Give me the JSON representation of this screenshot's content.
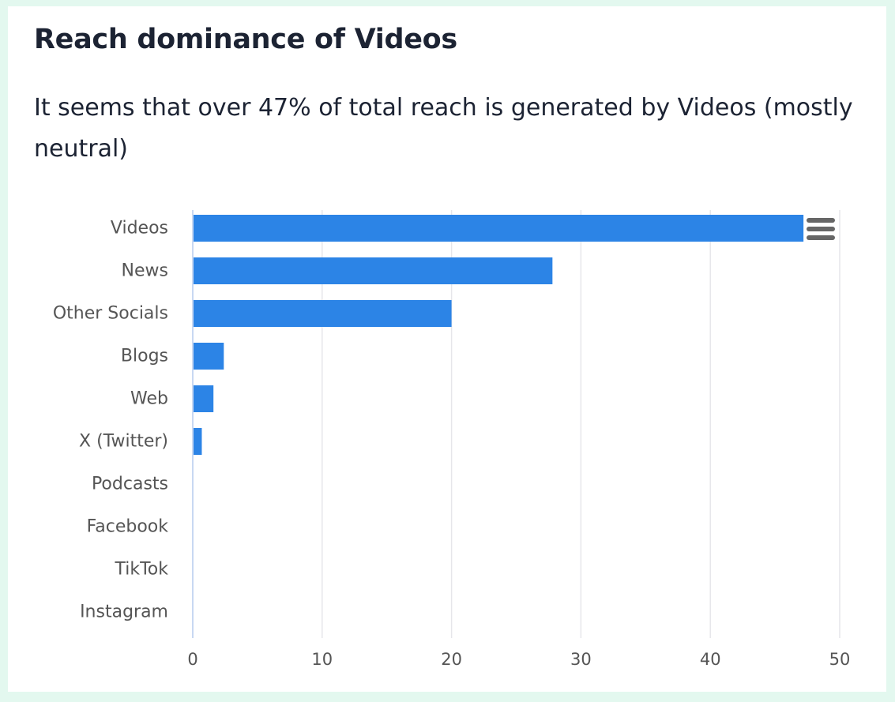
{
  "card": {
    "title": "Reach dominance of Videos",
    "description": "It seems that over 47% of total reach is generated by Videos (mostly neutral)"
  },
  "chart_menu": {
    "icon": "menu-icon"
  },
  "colors": {
    "bar": "#2c84e6",
    "grid": "#e6e6ea",
    "axis": "#c8d8f2",
    "label": "#555555",
    "title": "#1c2333",
    "background": "#e3f8ef"
  },
  "chart_data": {
    "type": "bar",
    "orientation": "horizontal",
    "categories": [
      "Videos",
      "News",
      "Other Socials",
      "Blogs",
      "Web",
      "X (Twitter)",
      "Podcasts",
      "Facebook",
      "TikTok",
      "Instagram"
    ],
    "values": [
      47.2,
      27.8,
      20,
      2.4,
      1.6,
      0.7,
      0,
      0,
      0,
      0
    ],
    "xlim": [
      0,
      50
    ],
    "xticks": [
      0,
      10,
      20,
      30,
      40,
      50
    ],
    "grid": true,
    "legend": "none",
    "title": "",
    "xlabel": "",
    "ylabel": ""
  }
}
